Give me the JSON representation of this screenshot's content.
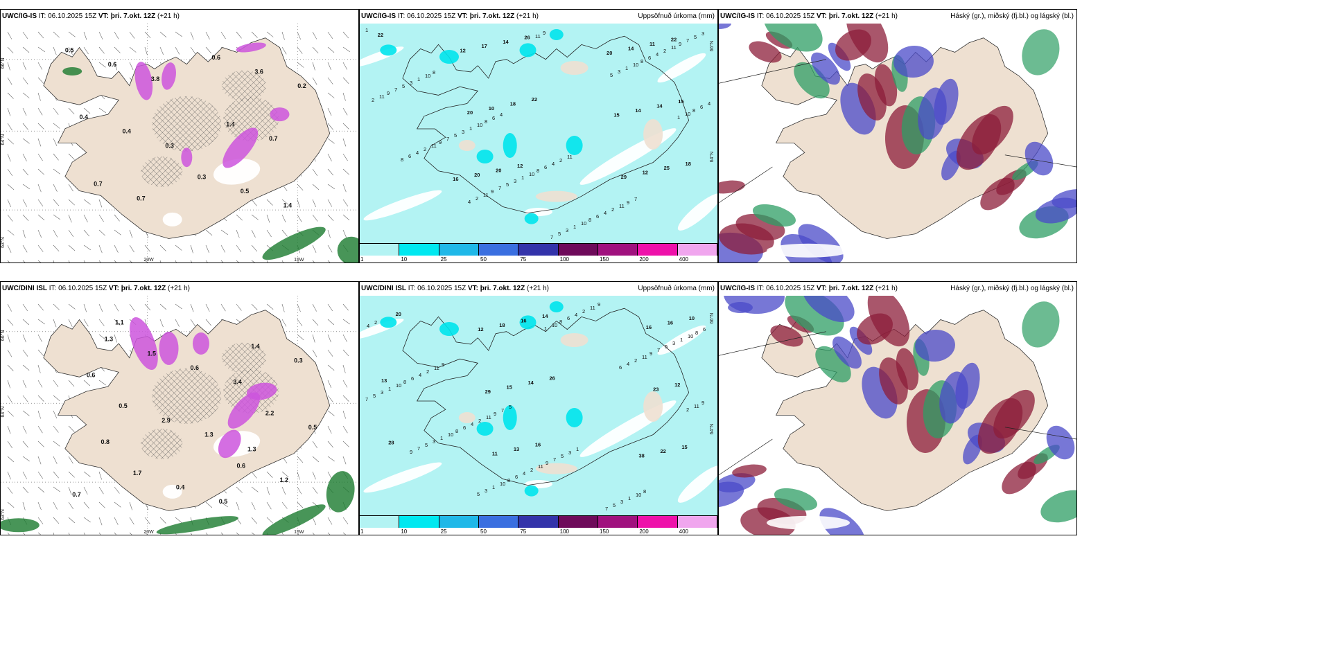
{
  "panels": {
    "p1": {
      "model": "UWC/IG-IS",
      "it_label": "IT:",
      "it": "06.10.2025 15Z",
      "vt_label": "VT:",
      "vt": "þri. 7.okt. 12Z",
      "lead": "(+21 h)",
      "right": ""
    },
    "p2": {
      "model": "UWC/IG-IS",
      "it_label": "IT:",
      "it": "06.10.2025 15Z",
      "vt_label": "VT:",
      "vt": "þri. 7.okt. 12Z",
      "lead": "(+21 h)",
      "right": "Uppsöfnuð úrkoma (mm)"
    },
    "p3": {
      "model": "UWC/IG-IS",
      "it_label": "IT:",
      "it": "06.10.2025 15Z",
      "vt_label": "VT:",
      "vt": "þri. 7.okt. 12Z",
      "lead": "(+21 h)",
      "right": "Háský (gr.), miðský (fj.bl.) og lágský (bl.)"
    },
    "p4": {
      "model": "UWC/DINI ISL",
      "it_label": "IT:",
      "it": "06.10.2025 15Z",
      "vt_label": "VT:",
      "vt": "þri. 7.okt. 12Z",
      "lead": "(+21 h)",
      "right": ""
    },
    "p5": {
      "model": "UWC/DINI ISL",
      "it_label": "IT:",
      "it": "06.10.2025 15Z",
      "vt_label": "VT:",
      "vt": "þri. 7.okt. 12Z",
      "lead": "(+21 h)",
      "right": "Uppsöfnuð úrkoma (mm)"
    },
    "p6": {
      "model": "UWC/IG-IS",
      "it_label": "IT:",
      "it": "06.10.2025 15Z",
      "vt_label": "VT:",
      "vt": "þri. 7.okt. 12Z",
      "lead": "(+21 h)",
      "right": "Háský (gr.), miðský (fj.bl.) og lágský (bl.)"
    }
  },
  "axes": {
    "lat66": "66°N",
    "lat64": "64°N",
    "lat63": "63°N",
    "lon20": "20W",
    "lon15": "15W"
  },
  "legend": {
    "labels": [
      "1",
      "10",
      "25",
      "50",
      "75",
      "100",
      "150",
      "200",
      "400"
    ],
    "colors": [
      "#b3f3f3",
      "#00e8f0",
      "#1fb8e8",
      "#3a6fe0",
      "#3333aa",
      "#6e0a5a",
      "#a0117e",
      "#ee11aa",
      "#f0a6ee"
    ]
  },
  "precip_values": {
    "top": [
      "22",
      "22",
      "18",
      "26",
      "15",
      "12",
      "22",
      "18",
      "25",
      "14",
      "14",
      "20",
      "11",
      "10",
      "12",
      "17",
      "14",
      "20",
      "14",
      "20",
      "29",
      "12",
      "15",
      "16",
      "20"
    ],
    "bottom": [
      "20",
      "26",
      "28",
      "14",
      "13",
      "16",
      "10",
      "14",
      "15",
      "16",
      "12",
      "13",
      "16",
      "15",
      "22",
      "18",
      "23",
      "11",
      "16",
      "29",
      "38",
      "12"
    ]
  },
  "rain_values": {
    "top": [
      "0.5",
      "0.3",
      "0.4",
      "0.6",
      "0.7",
      "1.4",
      "0.6",
      "0.5",
      "0.4",
      "3.6",
      "0.7",
      "0.7",
      "3.8",
      "1.4",
      "0.3",
      "0.2"
    ],
    "bottom": [
      "1.3",
      "0.6",
      "0.5",
      "1.4",
      "1.7",
      "2.2",
      "1.5",
      "1.2",
      "2.9",
      "0.3",
      "0.4",
      "0.5",
      "0.6",
      "0.7",
      "1.3",
      "0.6",
      "0.5",
      "0.8",
      "3.4",
      "1.1",
      "1.3"
    ]
  },
  "colors": {
    "land": "#eee0d1",
    "sea_precip": "#b3f3f3",
    "purple": "#cc55dd",
    "green": "#1a7a2e",
    "high_cloud": "#2e9e64",
    "mid_cloud": "#8c1e3a",
    "low_cloud": "#4a4ac8"
  }
}
